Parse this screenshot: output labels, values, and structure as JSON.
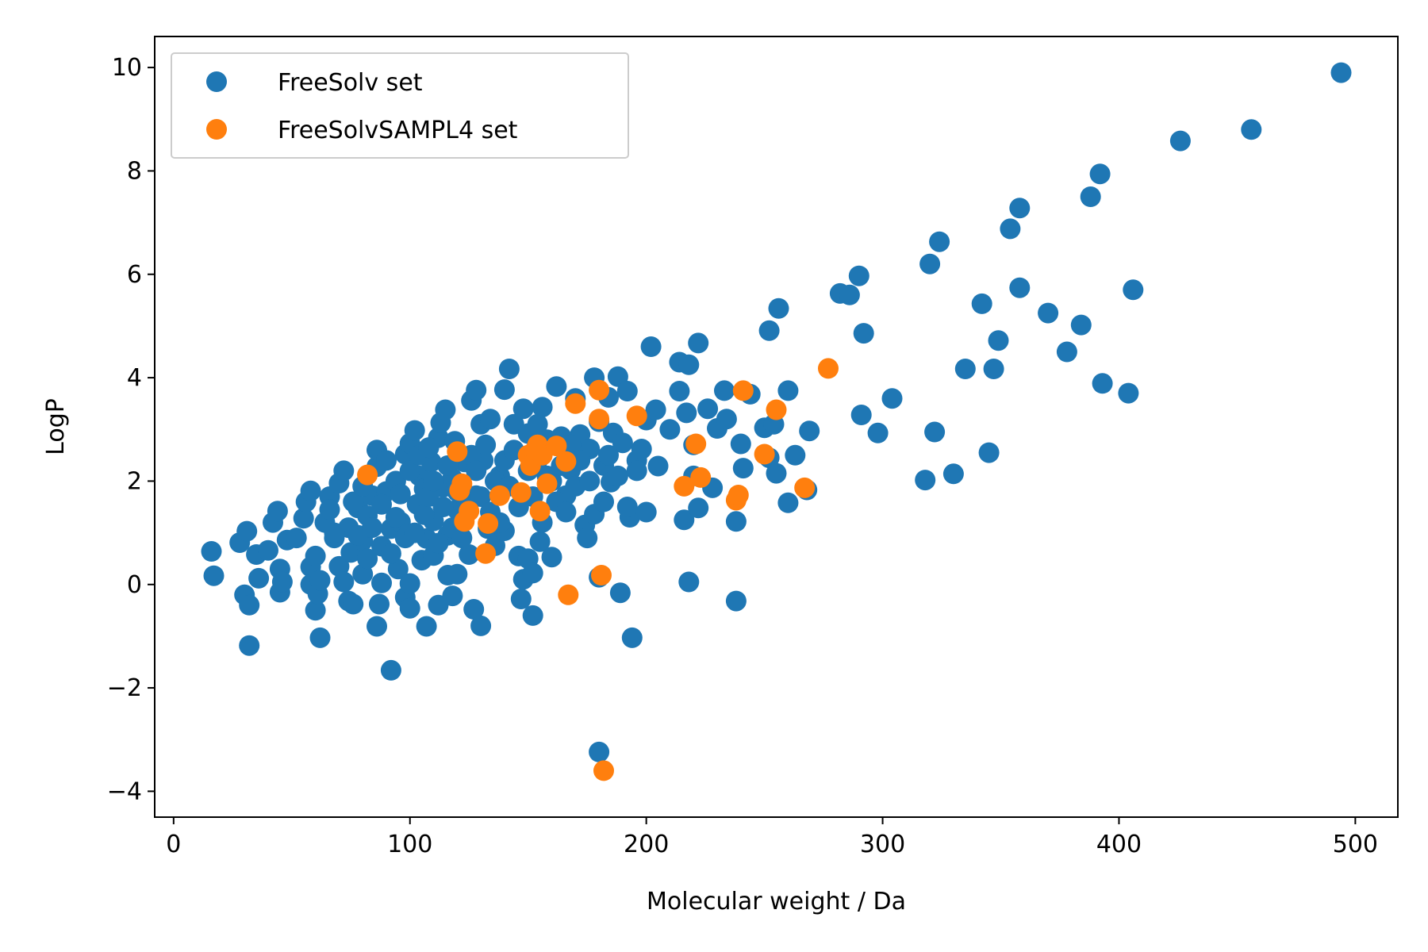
{
  "chart_data": {
    "type": "scatter",
    "title": "",
    "xlabel": "Molecular weight / Da",
    "ylabel": "LogP",
    "xlim": [
      -8,
      518
    ],
    "ylim": [
      -4.5,
      10.6
    ],
    "xticks": [
      0,
      100,
      200,
      300,
      400,
      500
    ],
    "yticks": [
      -4,
      -2,
      0,
      2,
      4,
      6,
      8,
      10
    ],
    "xtick_labels": [
      "0",
      "100",
      "200",
      "300",
      "400",
      "500"
    ],
    "ytick_labels": [
      "−4",
      "−2",
      "0",
      "2",
      "4",
      "6",
      "8",
      "10"
    ],
    "grid": false,
    "legend_position": "top-left",
    "series": [
      {
        "name": "FreeSolv set",
        "color": "#1f77b4",
        "points": [
          [
            16,
            0.64
          ],
          [
            17,
            0.17
          ],
          [
            28,
            0.81
          ],
          [
            30,
            -0.2
          ],
          [
            31,
            1.03
          ],
          [
            32,
            -0.4
          ],
          [
            32,
            -1.18
          ],
          [
            35,
            0.58
          ],
          [
            36,
            0.12
          ],
          [
            40,
            0.66
          ],
          [
            42,
            1.2
          ],
          [
            44,
            1.42
          ],
          [
            45,
            0.3
          ],
          [
            45,
            -0.15
          ],
          [
            46,
            0.05
          ],
          [
            48,
            0.86
          ],
          [
            52,
            0.9
          ],
          [
            55,
            1.28
          ],
          [
            56,
            1.6
          ],
          [
            58,
            1.81
          ],
          [
            58,
            0.34
          ],
          [
            58,
            0.0
          ],
          [
            60,
            -0.5
          ],
          [
            60,
            0.55
          ],
          [
            61,
            -0.18
          ],
          [
            62,
            0.08
          ],
          [
            62,
            -1.03
          ],
          [
            66,
            1.7
          ],
          [
            68,
            0.9
          ],
          [
            70,
            1.96
          ],
          [
            70,
            0.35
          ],
          [
            72,
            0.05
          ],
          [
            72,
            2.2
          ],
          [
            74,
            -0.32
          ],
          [
            74,
            1.1
          ],
          [
            75,
            0.62
          ],
          [
            76,
            -0.38
          ],
          [
            78,
            1.48
          ],
          [
            80,
            0.2
          ],
          [
            80,
            0.85
          ],
          [
            82,
            1.33
          ],
          [
            84,
            1.72
          ],
          [
            86,
            2.28
          ],
          [
            86,
            2.6
          ],
          [
            86,
            -0.81
          ],
          [
            87,
            -0.38
          ],
          [
            88,
            0.03
          ],
          [
            88,
            0.74
          ],
          [
            90,
            1.8
          ],
          [
            92,
            1.08
          ],
          [
            92,
            -1.66
          ],
          [
            94,
            2.0
          ],
          [
            95,
            0.3
          ],
          [
            96,
            1.21
          ],
          [
            98,
            2.52
          ],
          [
            98,
            -0.25
          ],
          [
            100,
            2.73
          ],
          [
            100,
            0.02
          ],
          [
            100,
            -0.46
          ],
          [
            102,
            2.98
          ],
          [
            103,
            1.55
          ],
          [
            104,
            2.1
          ],
          [
            105,
            0.47
          ],
          [
            106,
            1.85
          ],
          [
            107,
            0.89
          ],
          [
            107,
            -0.81
          ],
          [
            109,
            2.37
          ],
          [
            110,
            1.23
          ],
          [
            110,
            0.56
          ],
          [
            112,
            2.84
          ],
          [
            112,
            -0.4
          ],
          [
            113,
            3.13
          ],
          [
            114,
            1.88
          ],
          [
            115,
            3.38
          ],
          [
            116,
            0.95
          ],
          [
            116,
            0.18
          ],
          [
            118,
            2.05
          ],
          [
            118,
            -0.22
          ],
          [
            119,
            2.77
          ],
          [
            120,
            1.45
          ],
          [
            120,
            0.2
          ],
          [
            123,
            2.37
          ],
          [
            125,
            0.58
          ],
          [
            126,
            3.56
          ],
          [
            127,
            -0.48
          ],
          [
            128,
            3.76
          ],
          [
            128,
            1.72
          ],
          [
            130,
            3.1
          ],
          [
            130,
            -0.8
          ],
          [
            131,
            2.4
          ],
          [
            133,
            1.08
          ],
          [
            134,
            3.2
          ],
          [
            136,
            0.75
          ],
          [
            138,
            2.1
          ],
          [
            140,
            3.77
          ],
          [
            140,
            1.04
          ],
          [
            142,
            4.17
          ],
          [
            144,
            3.1
          ],
          [
            146,
            0.55
          ],
          [
            147,
            -0.28
          ],
          [
            148,
            3.4
          ],
          [
            148,
            0.1
          ],
          [
            150,
            0.5
          ],
          [
            150,
            2.92
          ],
          [
            152,
            -0.6
          ],
          [
            152,
            0.22
          ],
          [
            154,
            3.1
          ],
          [
            155,
            0.83
          ],
          [
            156,
            3.43
          ],
          [
            158,
            2.1
          ],
          [
            160,
            0.53
          ],
          [
            162,
            3.83
          ],
          [
            164,
            2.86
          ],
          [
            166,
            1.72
          ],
          [
            168,
            2.22
          ],
          [
            170,
            3.6
          ],
          [
            172,
            2.9
          ],
          [
            174,
            1.15
          ],
          [
            175,
            0.9
          ],
          [
            176,
            2.62
          ],
          [
            178,
            4.0
          ],
          [
            178,
            1.36
          ],
          [
            180,
            3.15
          ],
          [
            180,
            -3.24
          ],
          [
            180,
            0.14
          ],
          [
            182,
            2.3
          ],
          [
            184,
            3.62
          ],
          [
            185,
            1.98
          ],
          [
            186,
            2.93
          ],
          [
            188,
            4.02
          ],
          [
            189,
            -0.16
          ],
          [
            190,
            2.74
          ],
          [
            192,
            3.74
          ],
          [
            193,
            1.3
          ],
          [
            194,
            -1.03
          ],
          [
            196,
            2.4
          ],
          [
            198,
            2.62
          ],
          [
            200,
            1.4
          ],
          [
            200,
            3.18
          ],
          [
            202,
            4.6
          ],
          [
            204,
            3.38
          ],
          [
            205,
            2.29
          ],
          [
            210,
            3.0
          ],
          [
            214,
            4.3
          ],
          [
            214,
            3.74
          ],
          [
            216,
            1.25
          ],
          [
            217,
            3.32
          ],
          [
            218,
            0.05
          ],
          [
            218,
            4.25
          ],
          [
            220,
            2.7
          ],
          [
            220,
            2.1
          ],
          [
            222,
            4.67
          ],
          [
            222,
            1.48
          ],
          [
            226,
            3.4
          ],
          [
            228,
            1.87
          ],
          [
            230,
            3.02
          ],
          [
            233,
            3.75
          ],
          [
            234,
            3.2
          ],
          [
            238,
            1.22
          ],
          [
            238,
            -0.32
          ],
          [
            240,
            2.72
          ],
          [
            241,
            2.25
          ],
          [
            244,
            3.68
          ],
          [
            250,
            3.03
          ],
          [
            252,
            4.91
          ],
          [
            252,
            2.45
          ],
          [
            254,
            3.1
          ],
          [
            255,
            2.15
          ],
          [
            256,
            5.34
          ],
          [
            260,
            1.58
          ],
          [
            260,
            3.75
          ],
          [
            263,
            2.5
          ],
          [
            268,
            1.83
          ],
          [
            269,
            2.97
          ],
          [
            282,
            5.63
          ],
          [
            286,
            5.6
          ],
          [
            290,
            5.97
          ],
          [
            291,
            3.28
          ],
          [
            292,
            4.86
          ],
          [
            298,
            2.93
          ],
          [
            304,
            3.6
          ],
          [
            318,
            2.02
          ],
          [
            320,
            6.2
          ],
          [
            322,
            2.95
          ],
          [
            324,
            6.63
          ],
          [
            330,
            2.14
          ],
          [
            335,
            4.17
          ],
          [
            342,
            5.43
          ],
          [
            345,
            2.55
          ],
          [
            347,
            4.17
          ],
          [
            349,
            4.72
          ],
          [
            354,
            6.88
          ],
          [
            358,
            7.28
          ],
          [
            358,
            5.74
          ],
          [
            370,
            5.25
          ],
          [
            378,
            4.5
          ],
          [
            384,
            5.02
          ],
          [
            388,
            7.5
          ],
          [
            392,
            7.94
          ],
          [
            393,
            3.89
          ],
          [
            404,
            3.7
          ],
          [
            406,
            5.7
          ],
          [
            426,
            8.58
          ],
          [
            456,
            8.8
          ],
          [
            494,
            9.9
          ],
          [
            64,
            1.2
          ],
          [
            66,
            1.45
          ],
          [
            68,
            1.0
          ],
          [
            76,
            1.6
          ],
          [
            78,
            0.95
          ],
          [
            80,
            1.9
          ],
          [
            82,
            0.5
          ],
          [
            84,
            1.1
          ],
          [
            88,
            1.55
          ],
          [
            90,
            2.4
          ],
          [
            92,
            0.6
          ],
          [
            94,
            1.3
          ],
          [
            96,
            1.75
          ],
          [
            98,
            0.9
          ],
          [
            100,
            2.2
          ],
          [
            102,
            1.0
          ],
          [
            104,
            2.5
          ],
          [
            106,
            1.35
          ],
          [
            108,
            1.7
          ],
          [
            108,
            2.65
          ],
          [
            110,
            2.0
          ],
          [
            112,
            0.8
          ],
          [
            114,
            1.5
          ],
          [
            116,
            2.3
          ],
          [
            118,
            1.1
          ],
          [
            120,
            1.8
          ],
          [
            122,
            0.9
          ],
          [
            124,
            1.6
          ],
          [
            126,
            2.5
          ],
          [
            128,
            2.2
          ],
          [
            130,
            1.7
          ],
          [
            132,
            2.7
          ],
          [
            134,
            1.4
          ],
          [
            136,
            2.0
          ],
          [
            138,
            1.2
          ],
          [
            140,
            2.4
          ],
          [
            142,
            1.9
          ],
          [
            144,
            2.6
          ],
          [
            146,
            1.5
          ],
          [
            150,
            2.2
          ],
          [
            152,
            1.7
          ],
          [
            154,
            2.4
          ],
          [
            156,
            1.2
          ],
          [
            158,
            2.8
          ],
          [
            160,
            2.0
          ],
          [
            162,
            1.6
          ],
          [
            164,
            2.3
          ],
          [
            166,
            1.4
          ],
          [
            168,
            2.7
          ],
          [
            170,
            1.9
          ],
          [
            172,
            2.4
          ],
          [
            176,
            2.0
          ],
          [
            182,
            1.6
          ],
          [
            184,
            2.5
          ],
          [
            188,
            2.1
          ],
          [
            192,
            1.5
          ],
          [
            196,
            2.2
          ]
        ]
      },
      {
        "name": "FreeSolvSAMPL4 set",
        "color": "#ff7f0e",
        "points": [
          [
            82,
            2.12
          ],
          [
            120,
            2.57
          ],
          [
            121,
            1.82
          ],
          [
            122,
            1.95
          ],
          [
            123,
            1.22
          ],
          [
            125,
            1.42
          ],
          [
            132,
            0.6
          ],
          [
            133,
            1.18
          ],
          [
            138,
            1.72
          ],
          [
            147,
            1.78
          ],
          [
            150,
            2.5
          ],
          [
            151,
            2.3
          ],
          [
            153,
            2.6
          ],
          [
            154,
            2.7
          ],
          [
            155,
            1.42
          ],
          [
            156,
            2.5
          ],
          [
            158,
            1.95
          ],
          [
            162,
            2.68
          ],
          [
            166,
            2.38
          ],
          [
            167,
            -0.2
          ],
          [
            170,
            3.5
          ],
          [
            180,
            3.76
          ],
          [
            180,
            3.2
          ],
          [
            181,
            0.18
          ],
          [
            182,
            -3.6
          ],
          [
            196,
            3.26
          ],
          [
            216,
            1.9
          ],
          [
            221,
            2.72
          ],
          [
            223,
            2.07
          ],
          [
            238,
            1.63
          ],
          [
            239,
            1.73
          ],
          [
            241,
            3.75
          ],
          [
            250,
            2.52
          ],
          [
            255,
            3.38
          ],
          [
            267,
            1.87
          ],
          [
            277,
            4.18
          ]
        ]
      }
    ]
  }
}
